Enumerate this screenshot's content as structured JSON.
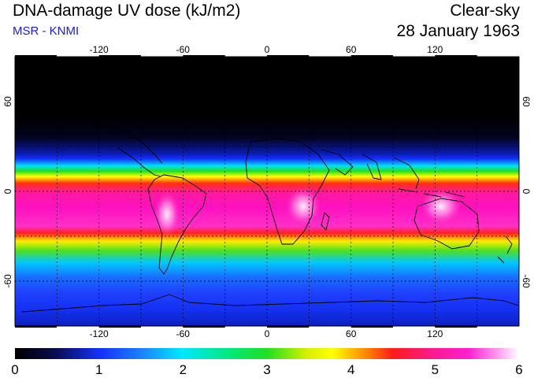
{
  "header": {
    "title": "DNA-damage UV dose (kJ/m2)",
    "subtitle": "MSR - KNMI",
    "condition": "Clear-sky",
    "date": "28 January 1963"
  },
  "map": {
    "projection": "equirectangular",
    "lon_range": [
      -180,
      180
    ],
    "lat_range": [
      -90,
      90
    ],
    "lon_ticks": [
      "-120",
      "-60",
      "0",
      "60",
      "120"
    ],
    "lat_ticks": [
      "60",
      "0",
      "-60"
    ],
    "gridlines": "dotted",
    "colors": {
      "min": "#000000",
      "blue": "#1432ff",
      "cyan": "#00e0ff",
      "green": "#20e020",
      "yellow": "#ffff00",
      "red": "#ff1a1a",
      "magenta": "#ff1acc",
      "max": "#ffffff"
    }
  },
  "colorbar": {
    "min": 0,
    "max": 6,
    "labels": [
      "0",
      "1",
      "2",
      "3",
      "4",
      "5",
      "6"
    ]
  }
}
